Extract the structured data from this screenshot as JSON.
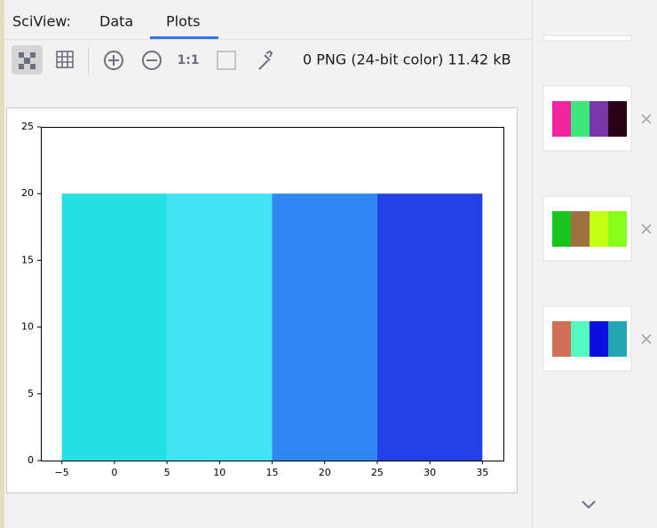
{
  "ui": {
    "tabs": [
      "SciView:",
      "Data",
      "Plots"
    ],
    "zoom_label": "1:1",
    "image_info": "0 PNG (24-bit color) 11.42 kB",
    "thumbnails": [
      {
        "colors": [
          "#f0259f",
          "#3de87a",
          "#7a35a8",
          "#2a0016"
        ]
      },
      {
        "colors": [
          "#17c51e",
          "#a07040",
          "#c5ff12",
          "#86ff1c"
        ]
      },
      {
        "colors": [
          "#cf7055",
          "#52f8c0",
          "#0d0ee0",
          "#22a6b4"
        ]
      }
    ]
  },
  "chart_data": {
    "type": "bar",
    "x": [
      0,
      10,
      20,
      30
    ],
    "width": 10,
    "values": [
      20,
      20,
      20,
      20
    ],
    "colors": [
      "#24e0e4",
      "#40e4f3",
      "#2f87f4",
      "#2241e8"
    ],
    "xlim": [
      -7,
      37
    ],
    "xticks": [
      {
        "value": -5,
        "label": "−5"
      },
      0,
      5,
      10,
      15,
      20,
      25,
      30,
      35
    ],
    "ylim": [
      0,
      25
    ],
    "yticks": [
      0,
      5,
      10,
      15,
      20,
      25
    ]
  }
}
